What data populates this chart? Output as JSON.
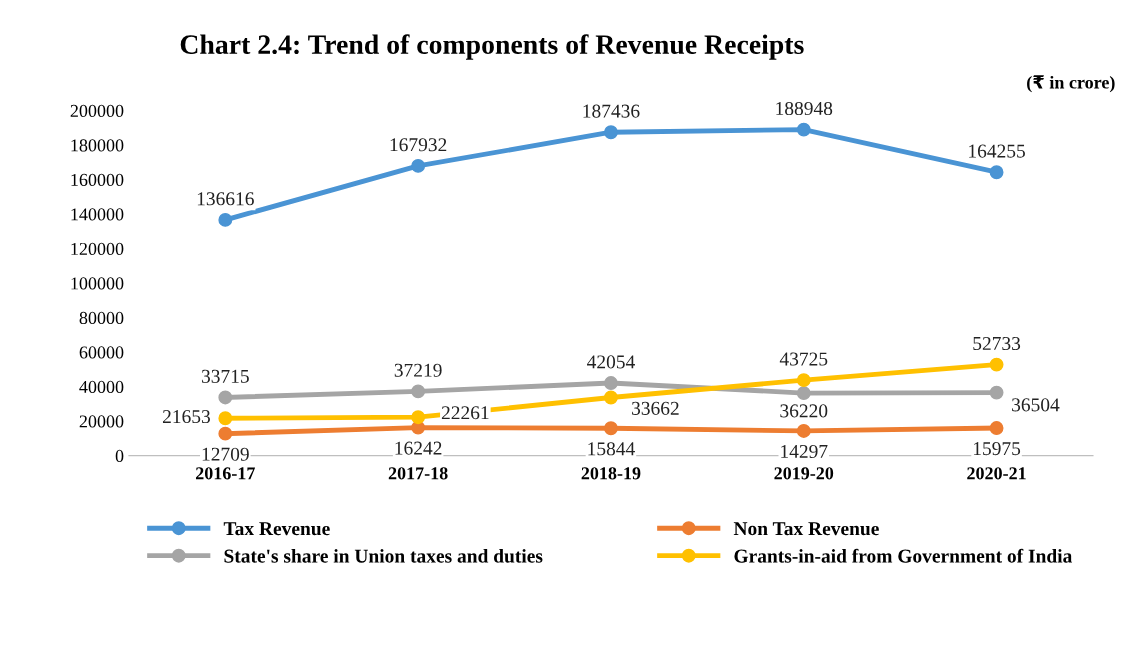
{
  "chart_data": {
    "type": "line",
    "title": "Chart 2.4: Trend of components of Revenue Receipts",
    "annotations": [
      "(₹ in crore)"
    ],
    "categories": [
      "2016-17",
      "2017-18",
      "2018-19",
      "2019-20",
      "2020-21"
    ],
    "series": [
      {
        "name": "Tax Revenue",
        "color": "#4a94d4",
        "values": [
          136616,
          167932,
          187436,
          188948,
          164255
        ]
      },
      {
        "name": "Non Tax Revenue",
        "color": "#ed7d31",
        "values": [
          12709,
          16242,
          15844,
          14297,
          15975
        ]
      },
      {
        "name": "State's share in Union taxes and duties",
        "color": "#a5a5a5",
        "values": [
          33715,
          37219,
          42054,
          36220,
          36504
        ]
      },
      {
        "name": "Grants-in-aid from Government of India",
        "color": "#ffc000",
        "values": [
          21653,
          22261,
          33662,
          43725,
          52733
        ]
      }
    ],
    "ylim": [
      0,
      200000
    ],
    "yticks": [
      0,
      20000,
      40000,
      60000,
      80000,
      100000,
      120000,
      140000,
      160000,
      180000,
      200000
    ],
    "grid": false,
    "legend": "bottom",
    "marker": "circle",
    "line_style": "solid",
    "data_labels": true
  }
}
